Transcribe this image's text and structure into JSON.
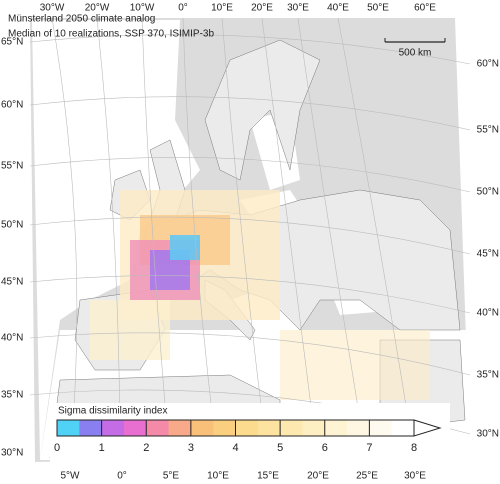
{
  "title": "Münsterland 2050 climate analog",
  "subtitle": "Median of 10 realizations, SSP 370, ISIMIP-3b",
  "scale_bar": "500 km",
  "labels": {
    "top": [
      "30°W",
      "20°W",
      "10°W",
      "0°",
      "10°E",
      "20°E",
      "30°E",
      "40°E",
      "50°E",
      "60°E"
    ],
    "left": [
      "65°N",
      "60°N",
      "55°N",
      "50°N",
      "45°N",
      "40°N",
      "35°N",
      "30°N"
    ],
    "right": [
      "60°N",
      "55°N",
      "50°N",
      "45°N",
      "40°N",
      "35°N",
      "30°N"
    ],
    "bottom": [
      "5°W",
      "0°",
      "5°E",
      "10°E",
      "15°E",
      "20°E",
      "25°E",
      "30°E"
    ]
  },
  "colorbar": {
    "title": "Sigma dissimilarity index",
    "lim": [
      0,
      8
    ],
    "ticks": [
      0,
      1,
      2,
      3,
      4,
      5,
      6,
      7,
      8
    ],
    "colors": [
      "#4fd2f5",
      "#8a7ff0",
      "#c46be6",
      "#e86fd0",
      "#f48aa8",
      "#f8a98a",
      "#f9c07a",
      "#fbcf80",
      "#fcdb8e",
      "#fde39f",
      "#fde9b0",
      "#feefc2",
      "#fef3d2",
      "#fff7e2",
      "#fffaf0",
      "#ffffff"
    ]
  }
}
